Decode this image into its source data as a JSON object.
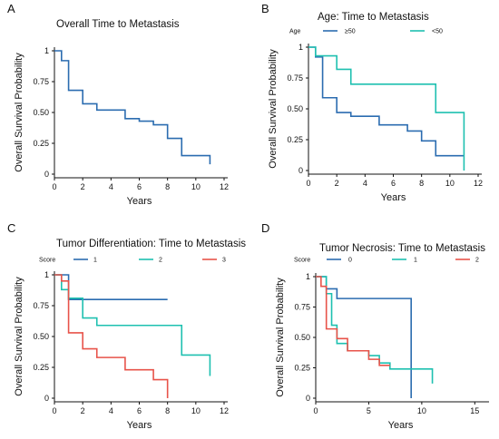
{
  "figure": {
    "panels": [
      {
        "letter": "A"
      },
      {
        "letter": "B"
      },
      {
        "letter": "C"
      },
      {
        "letter": "D"
      }
    ]
  },
  "chart_data": [
    {
      "type": "line",
      "step": true,
      "title": "Overall Time to Metastasis",
      "xlabel": "Years",
      "ylabel": "Overall Survival Probability",
      "xlim": [
        0,
        12
      ],
      "ylim": [
        0,
        1
      ],
      "xticks": [
        0,
        2,
        4,
        6,
        8,
        10,
        12
      ],
      "yticks": [
        0,
        0.25,
        0.5,
        0.75,
        1
      ],
      "ytick_labels": [
        "0",
        "0.25",
        "0.50",
        "0.75",
        "1"
      ],
      "legend_title": "",
      "colors": [
        "#2b6cb0"
      ],
      "series": [
        {
          "name": "",
          "color": "#2b6cb0",
          "end_x": 11,
          "steps": [
            [
              0,
              1
            ],
            [
              0.5,
              0.92
            ],
            [
              1,
              0.68
            ],
            [
              2,
              0.57
            ],
            [
              3,
              0.52
            ],
            [
              5,
              0.45
            ],
            [
              6,
              0.43
            ],
            [
              7,
              0.4
            ],
            [
              8,
              0.29
            ],
            [
              9,
              0.15
            ],
            [
              11,
              0.08
            ]
          ]
        }
      ]
    },
    {
      "type": "line",
      "step": true,
      "title": "Age: Time to Metastasis",
      "xlabel": "Years",
      "ylabel": "Overall Survival Probability",
      "xlim": [
        0,
        12
      ],
      "ylim": [
        0,
        1
      ],
      "xticks": [
        0,
        2,
        4,
        6,
        8,
        10,
        12
      ],
      "yticks": [
        0,
        0.25,
        0.5,
        0.75,
        1
      ],
      "ytick_labels": [
        "0",
        "0.25",
        "0.50",
        "0.75",
        "1"
      ],
      "legend_title": "Age",
      "series": [
        {
          "name": "≥50",
          "color": "#2b6cb0",
          "end_x": 11,
          "steps": [
            [
              0,
              1
            ],
            [
              0.5,
              0.92
            ],
            [
              1,
              0.59
            ],
            [
              2,
              0.47
            ],
            [
              3,
              0.44
            ],
            [
              5,
              0.37
            ],
            [
              7,
              0.32
            ],
            [
              8,
              0.24
            ],
            [
              9,
              0.12
            ],
            [
              11,
              0.12
            ]
          ]
        },
        {
          "name": "<50",
          "color": "#1ec0b0",
          "end_x": 11,
          "steps": [
            [
              0,
              1
            ],
            [
              0.5,
              0.93
            ],
            [
              2,
              0.82
            ],
            [
              3,
              0.7
            ],
            [
              9,
              0.47
            ],
            [
              11,
              0
            ]
          ]
        }
      ]
    },
    {
      "type": "line",
      "step": true,
      "title": "Tumor Differentiation: Time to Metastasis",
      "xlabel": "Years",
      "ylabel": "Overall Survival Probability",
      "xlim": [
        0,
        12
      ],
      "ylim": [
        0,
        1
      ],
      "xticks": [
        0,
        2,
        4,
        6,
        8,
        10,
        12
      ],
      "yticks": [
        0,
        0.25,
        0.5,
        0.75,
        1
      ],
      "ytick_labels": [
        "0",
        "0.25",
        "0.50",
        "0.75",
        "1"
      ],
      "legend_title": "Score",
      "series": [
        {
          "name": "1",
          "color": "#2b6cb0",
          "end_x": 8,
          "steps": [
            [
              0,
              1
            ],
            [
              1,
              0.8
            ],
            [
              8,
              0.8
            ]
          ]
        },
        {
          "name": "2",
          "color": "#1ec0b0",
          "end_x": 11,
          "steps": [
            [
              0,
              1
            ],
            [
              0.5,
              0.88
            ],
            [
              1,
              0.81
            ],
            [
              2,
              0.65
            ],
            [
              3,
              0.59
            ],
            [
              9,
              0.35
            ],
            [
              11,
              0.18
            ]
          ]
        },
        {
          "name": "3",
          "color": "#e8534a",
          "end_x": 8,
          "steps": [
            [
              0,
              1
            ],
            [
              0.5,
              0.95
            ],
            [
              1,
              0.53
            ],
            [
              2,
              0.4
            ],
            [
              3,
              0.33
            ],
            [
              5,
              0.23
            ],
            [
              7,
              0.15
            ],
            [
              8,
              0
            ]
          ]
        }
      ]
    },
    {
      "type": "line",
      "step": true,
      "title": "Tumor Necrosis: Time to Metastasis",
      "xlabel": "Years",
      "ylabel": "Overall Survival Probability",
      "xlim": [
        0,
        16
      ],
      "ylim": [
        0,
        1
      ],
      "xticks": [
        0,
        5,
        10,
        15
      ],
      "yticks": [
        0,
        0.25,
        0.5,
        0.75,
        1
      ],
      "ytick_labels": [
        "0",
        "0.25",
        "0.50",
        "0.75",
        "1"
      ],
      "legend_title": "Score",
      "series": [
        {
          "name": "0",
          "color": "#2b6cb0",
          "end_x": 9,
          "steps": [
            [
              0,
              1
            ],
            [
              1,
              0.9
            ],
            [
              2,
              0.82
            ],
            [
              9,
              0
            ]
          ]
        },
        {
          "name": "1",
          "color": "#1ec0b0",
          "end_x": 11,
          "steps": [
            [
              0,
              1
            ],
            [
              1,
              0.86
            ],
            [
              1.5,
              0.6
            ],
            [
              2,
              0.45
            ],
            [
              3,
              0.39
            ],
            [
              5,
              0.35
            ],
            [
              6,
              0.29
            ],
            [
              7,
              0.24
            ],
            [
              9,
              0.24
            ],
            [
              11,
              0.12
            ]
          ]
        },
        {
          "name": "2",
          "color": "#e8534a",
          "end_x": 7,
          "steps": [
            [
              0,
              1
            ],
            [
              0.5,
              0.92
            ],
            [
              1,
              0.57
            ],
            [
              2,
              0.49
            ],
            [
              3,
              0.39
            ],
            [
              5,
              0.32
            ],
            [
              6,
              0.27
            ],
            [
              7,
              0.27
            ]
          ]
        }
      ]
    }
  ]
}
